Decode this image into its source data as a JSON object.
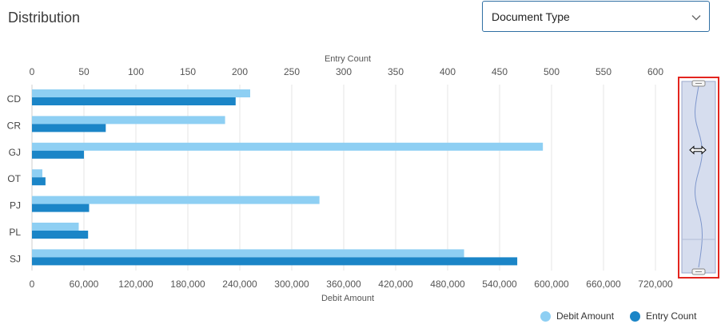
{
  "section": {
    "title": "Distribution"
  },
  "dropdown": {
    "selected": "Document Type"
  },
  "colors": {
    "debit": "#8ecff3",
    "entry": "#1b85c7",
    "grid": "#e6e6e6",
    "scroller_border": "#e3251f",
    "scroller_fill": "#d6ddee"
  },
  "chart_data": {
    "type": "bar",
    "orientation": "horizontal",
    "categories": [
      "CD",
      "CR",
      "GJ",
      "OT",
      "PJ",
      "PL",
      "SJ"
    ],
    "series": [
      {
        "name": "Debit Amount",
        "axis": "bottom",
        "values": [
          252000,
          223000,
          590000,
          12000,
          332000,
          54000,
          499000
        ]
      },
      {
        "name": "Entry Count",
        "axis": "top",
        "values": [
          196,
          71,
          50,
          13,
          55,
          54,
          467
        ]
      }
    ],
    "top_axis": {
      "label": "Entry Count",
      "ticks": [
        "0",
        "50",
        "100",
        "150",
        "200",
        "250",
        "300",
        "350",
        "400",
        "450",
        "500",
        "550",
        "600"
      ],
      "range": [
        0,
        600
      ]
    },
    "bottom_axis": {
      "label": "Debit Amount",
      "ticks": [
        "0",
        "60,000",
        "120,000",
        "180,000",
        "240,000",
        "300,000",
        "360,000",
        "420,000",
        "480,000",
        "540,000",
        "600,000",
        "660,000",
        "720,000"
      ],
      "range": [
        0,
        720000
      ]
    },
    "grid": true,
    "legend": {
      "position": "bottom-right",
      "items": [
        "Debit Amount",
        "Entry Count"
      ]
    }
  }
}
